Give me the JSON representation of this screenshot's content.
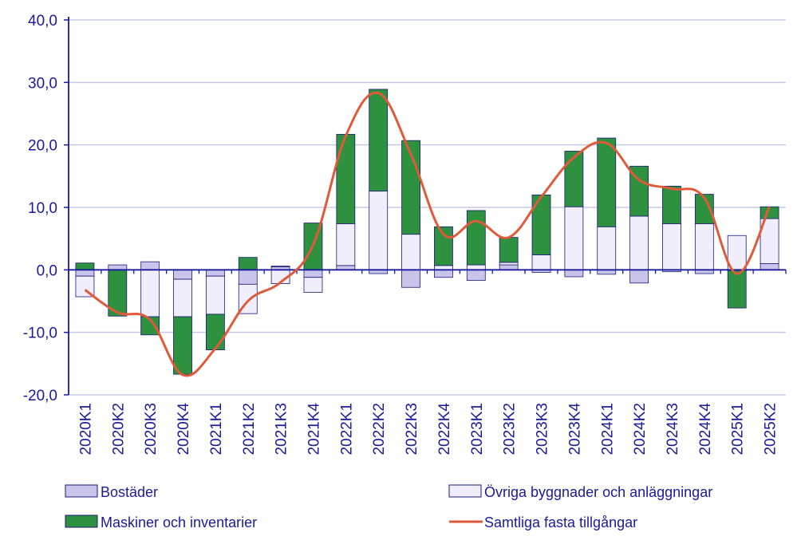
{
  "chart_data": {
    "type": "bar",
    "stacked": true,
    "categories": [
      "2020K1",
      "2020K2",
      "2020K3",
      "2020K4",
      "2021K1",
      "2021K2",
      "2021K3",
      "2021K4",
      "2022K1",
      "2022K2",
      "2022K3",
      "2022K4",
      "2023K1",
      "2023K2",
      "2023K3",
      "2023K4",
      "2024K1",
      "2024K2",
      "2024K3",
      "2024K4",
      "2025K1",
      "2025K2"
    ],
    "ylim": [
      -20,
      40
    ],
    "yticks": [
      -20,
      -10,
      0,
      10,
      20,
      30,
      40
    ],
    "ytick_labels": [
      "-20,0",
      "-10,0",
      "0,0",
      "10,0",
      "20,0",
      "30,0",
      "40,0"
    ],
    "grid": true,
    "legend_position": "bottom",
    "series": [
      {
        "name": "Bostäder",
        "color": "#c9c4ea",
        "values": [
          -1.0,
          0.8,
          1.3,
          -1.5,
          -1.0,
          -2.3,
          0.5,
          -1.2,
          0.7,
          -0.6,
          -2.8,
          -1.2,
          -1.7,
          0.8,
          -0.4,
          -1.1,
          -0.7,
          -2.1,
          -0.3,
          -0.6,
          -0.1,
          1.0
        ]
      },
      {
        "name": "Övriga byggnader och anläggningar",
        "color": "#f0eefb",
        "values": [
          -3.3,
          0.0,
          -7.5,
          -6.0,
          -6.1,
          -4.7,
          -2.2,
          -2.4,
          6.7,
          12.6,
          5.7,
          0.7,
          0.8,
          0.4,
          2.4,
          10.1,
          6.9,
          8.6,
          7.4,
          7.4,
          5.5,
          7.2
        ]
      },
      {
        "name": "Maskiner och inventarier",
        "color": "#2d9140",
        "values": [
          1.1,
          -7.4,
          -2.9,
          -9.2,
          -5.7,
          2.0,
          0.1,
          7.5,
          14.3,
          16.3,
          15.0,
          6.2,
          8.7,
          4.0,
          9.6,
          8.9,
          14.2,
          8.0,
          6.0,
          4.7,
          -6.0,
          1.9
        ]
      }
    ],
    "line_series": {
      "name": "Samtliga fasta tillgångar",
      "color": "#e05a3a",
      "values": [
        -3.2,
        -6.8,
        -8.0,
        -16.8,
        -12.6,
        -5.0,
        -2.0,
        4.0,
        21.4,
        28.3,
        18.5,
        5.7,
        7.8,
        5.2,
        11.7,
        18.0,
        20.3,
        14.4,
        13.0,
        11.5,
        -0.6,
        10.1
      ]
    },
    "legend": [
      {
        "label": "Bostäder",
        "color": "#c9c4ea",
        "kind": "box"
      },
      {
        "label": "Övriga byggnader och anläggningar",
        "color": "#f0eefb",
        "kind": "box"
      },
      {
        "label": "Maskiner och inventarier",
        "color": "#2d9140",
        "kind": "box"
      },
      {
        "label": "Samtliga fasta tillgångar",
        "color": "#e05a3a",
        "kind": "line"
      }
    ],
    "axis_color": "#1a1a9a",
    "grid_color": "#c8c8e6"
  }
}
